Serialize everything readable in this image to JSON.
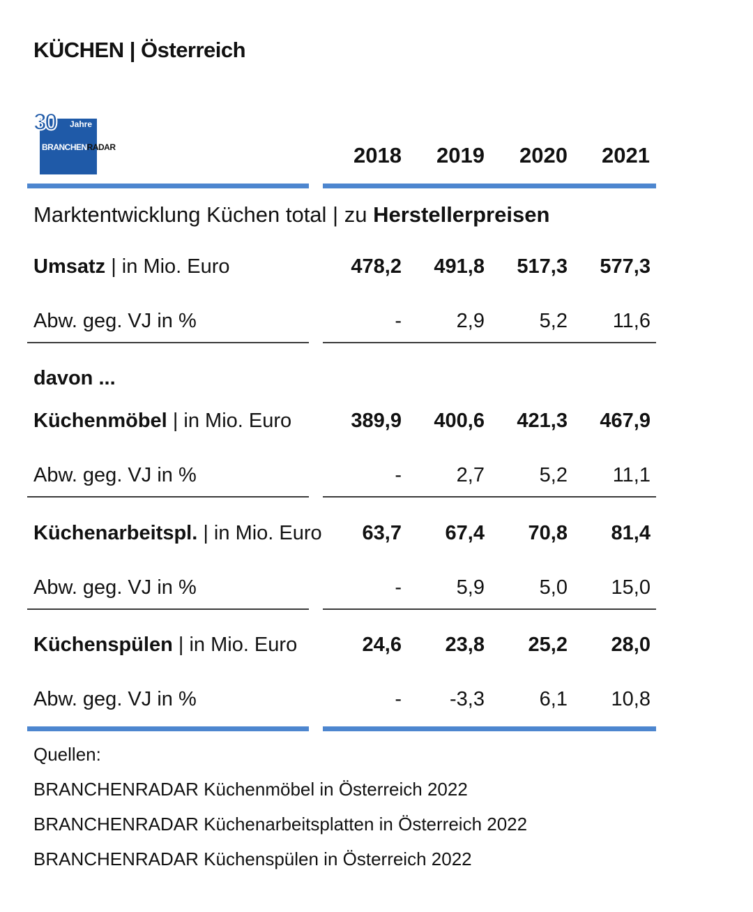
{
  "title": "KÜCHEN | Österreich",
  "logo": {
    "number": "30",
    "jahre": "Jahre",
    "brand_a": "BRANCHEN",
    "brand_b": "RADAR"
  },
  "section": {
    "prefix": "Marktentwicklung Küchen total | zu ",
    "bold": "Herstellerpreisen"
  },
  "davon": "davon ...",
  "sources_label": "Quellen:",
  "sources": [
    "BRANCHENRADAR Küchenmöbel in Österreich 2022",
    "BRANCHENRADAR Küchenarbeitsplatten in Österreich 2022",
    "BRANCHENRADAR Küchenspülen in Österreich 2022"
  ],
  "colors": {
    "accent": "#4d86cf",
    "logo_blue": "#1f5aa8",
    "rule": "#3a3a3a"
  },
  "chart_data": {
    "type": "table",
    "title": "KÜCHEN | Österreich",
    "subtitle": "Marktentwicklung Küchen total | zu Herstellerpreisen",
    "columns": [
      "2018",
      "2019",
      "2020",
      "2021"
    ],
    "rows": [
      {
        "name": "Umsatz",
        "unit": "| in Mio. Euro",
        "values": [
          "478,2",
          "491,8",
          "517,3",
          "577,3"
        ],
        "change_label": "Abw. geg. VJ in %",
        "change": [
          "-",
          "2,9",
          "5,2",
          "11,6"
        ]
      },
      {
        "name": "Küchenmöbel",
        "unit": "| in Mio. Euro",
        "values": [
          "389,9",
          "400,6",
          "421,3",
          "467,9"
        ],
        "change_label": "Abw. geg. VJ in %",
        "change": [
          "-",
          "2,7",
          "5,2",
          "11,1"
        ]
      },
      {
        "name": "Küchenarbeitspl.",
        "unit": "| in Mio. Euro",
        "values": [
          "63,7",
          "67,4",
          "70,8",
          "81,4"
        ],
        "change_label": "Abw. geg. VJ in %",
        "change": [
          "-",
          "5,9",
          "5,0",
          "15,0"
        ]
      },
      {
        "name": "Küchenspülen",
        "unit": "| in Mio. Euro",
        "values": [
          "24,6",
          "23,8",
          "25,2",
          "28,0"
        ],
        "change_label": "Abw. geg. VJ in %",
        "change": [
          "-",
          "-3,3",
          "6,1",
          "10,8"
        ]
      }
    ]
  }
}
